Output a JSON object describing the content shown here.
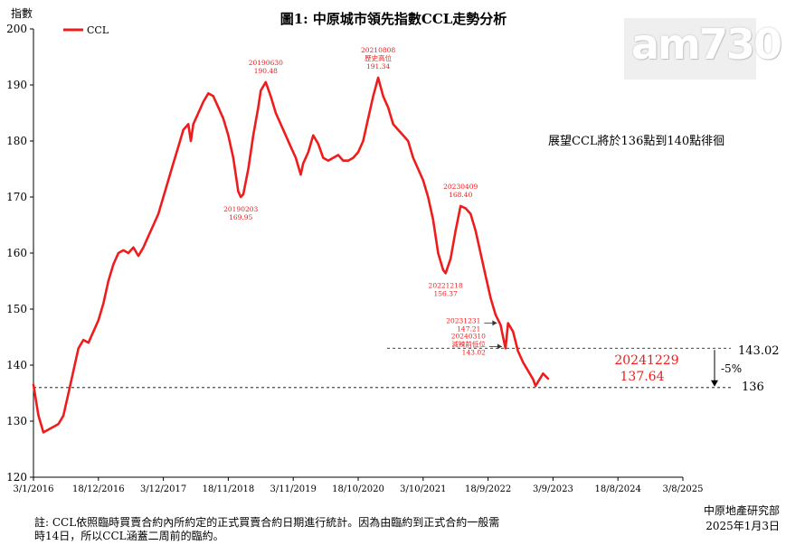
{
  "chart_data": {
    "type": "line",
    "title": "圖1: 中原城市領先指數CCL走勢分析",
    "ylabel": "指數",
    "ylim": [
      120,
      200
    ],
    "yticks": [
      120,
      130,
      140,
      150,
      160,
      170,
      180,
      190,
      200
    ],
    "xticks": [
      "3/1/2016",
      "18/12/2016",
      "3/12/2017",
      "18/11/2018",
      "3/11/2019",
      "18/10/2020",
      "3/10/2021",
      "18/9/2022",
      "3/9/2023",
      "18/8/2024",
      "3/8/2025"
    ],
    "legend": "top-left",
    "grid": false,
    "series": [
      {
        "name": "CCL",
        "color": "#ee1c1c",
        "points": [
          [
            0,
            136.5
          ],
          [
            4,
            131
          ],
          [
            8,
            128
          ],
          [
            12,
            128.5
          ],
          [
            16,
            129
          ],
          [
            20,
            129.5
          ],
          [
            24,
            131
          ],
          [
            28,
            135
          ],
          [
            32,
            139
          ],
          [
            36,
            143
          ],
          [
            40,
            144.5
          ],
          [
            44,
            144
          ],
          [
            48,
            146
          ],
          [
            52,
            148
          ],
          [
            56,
            151
          ],
          [
            60,
            155
          ],
          [
            64,
            158
          ],
          [
            68,
            160
          ],
          [
            72,
            160.5
          ],
          [
            76,
            160
          ],
          [
            80,
            161
          ],
          [
            84,
            159.5
          ],
          [
            88,
            161
          ],
          [
            92,
            163
          ],
          [
            96,
            165
          ],
          [
            100,
            167
          ],
          [
            104,
            170
          ],
          [
            108,
            173
          ],
          [
            112,
            176
          ],
          [
            116,
            179
          ],
          [
            120,
            182
          ],
          [
            124,
            183
          ],
          [
            126,
            180
          ],
          [
            128,
            183
          ],
          [
            132,
            185
          ],
          [
            136,
            187
          ],
          [
            140,
            188.5
          ],
          [
            144,
            188
          ],
          [
            148,
            186
          ],
          [
            152,
            184
          ],
          [
            156,
            181
          ],
          [
            160,
            177
          ],
          [
            164,
            171
          ],
          [
            166,
            170
          ],
          [
            168,
            170.5
          ],
          [
            172,
            175
          ],
          [
            176,
            181
          ],
          [
            180,
            186
          ],
          [
            182,
            189
          ],
          [
            186,
            190.5
          ],
          [
            190,
            188
          ],
          [
            194,
            185
          ],
          [
            198,
            183
          ],
          [
            202,
            181
          ],
          [
            206,
            179
          ],
          [
            210,
            177
          ],
          [
            214,
            174
          ],
          [
            216,
            176
          ],
          [
            220,
            178
          ],
          [
            224,
            181
          ],
          [
            228,
            179.5
          ],
          [
            232,
            177
          ],
          [
            236,
            176.5
          ],
          [
            240,
            177
          ],
          [
            244,
            177.5
          ],
          [
            248,
            176.5
          ],
          [
            252,
            176.5
          ],
          [
            256,
            177
          ],
          [
            260,
            178
          ],
          [
            264,
            180
          ],
          [
            268,
            184
          ],
          [
            272,
            188
          ],
          [
            276,
            191.3
          ],
          [
            280,
            188
          ],
          [
            284,
            186
          ],
          [
            288,
            183
          ],
          [
            292,
            182
          ],
          [
            296,
            181
          ],
          [
            300,
            180
          ],
          [
            304,
            177
          ],
          [
            308,
            175
          ],
          [
            312,
            173
          ],
          [
            316,
            170
          ],
          [
            320,
            166
          ],
          [
            324,
            160
          ],
          [
            328,
            157
          ],
          [
            330,
            156.4
          ],
          [
            334,
            159
          ],
          [
            338,
            164
          ],
          [
            342,
            168.4
          ],
          [
            346,
            168
          ],
          [
            350,
            167
          ],
          [
            354,
            164
          ],
          [
            358,
            160
          ],
          [
            362,
            156
          ],
          [
            366,
            152
          ],
          [
            370,
            149
          ],
          [
            374,
            147.2
          ],
          [
            376,
            145
          ],
          [
            378,
            143
          ],
          [
            380,
            147.5
          ],
          [
            384,
            146
          ],
          [
            388,
            142.5
          ],
          [
            392,
            140.5
          ],
          [
            396,
            139
          ],
          [
            400,
            137.5
          ],
          [
            402,
            136.3
          ],
          [
            404,
            137
          ],
          [
            408,
            138.5
          ],
          [
            412,
            137.6
          ]
        ]
      }
    ],
    "annotations": [
      {
        "date": "20190630",
        "value": "190.48",
        "point": [
          186,
          190.5
        ],
        "label_pos": "above"
      },
      {
        "date": "20190203",
        "value": "169.95",
        "point": [
          166,
          170
        ],
        "label_pos": "below"
      },
      {
        "date": "20210808",
        "value": "191.34",
        "note": "歷史高位",
        "point": [
          276,
          191.3
        ],
        "label_pos": "above"
      },
      {
        "date": "20221218",
        "value": "156.37",
        "point": [
          330,
          156.4
        ],
        "label_pos": "below"
      },
      {
        "date": "20230409",
        "value": "168.40",
        "point": [
          342,
          168.4
        ],
        "label_pos": "above"
      },
      {
        "date": "20231231",
        "value": "147.21",
        "point": [
          374,
          147.2
        ],
        "label_pos": "left-arrow"
      },
      {
        "date": "20240310",
        "value": "143.02",
        "note": "減辣前低位",
        "point": [
          378,
          143
        ],
        "label_pos": "left-arrow"
      }
    ],
    "latest": {
      "date": "20241229",
      "value": "137.64"
    },
    "reference_lines": [
      {
        "value": 143.02,
        "label": "143.02"
      },
      {
        "value": 136,
        "label": "136"
      }
    ],
    "change_label": "-5%",
    "outlook_text": "展望CCL將於136點到140點徘徊"
  },
  "watermark": "am730",
  "footnote": {
    "line1": "註: CCL依照臨時買賣合約內所約定的正式買賣合約日期進行統計。因為由臨約到正式合約一般需",
    "line2": "時14日，所以CCL涵蓋二周前的臨約。"
  },
  "source": {
    "org": "中原地產研究部",
    "date": "2025年1月3日"
  }
}
